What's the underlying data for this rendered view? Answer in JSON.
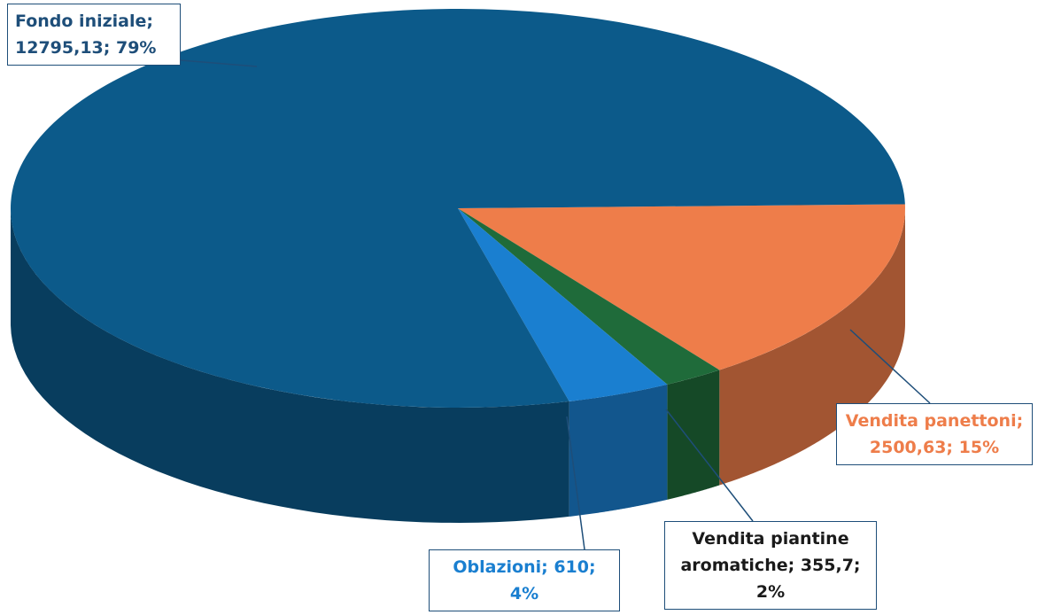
{
  "chart_data": {
    "type": "pie3d",
    "values": [
      12795.13,
      2500.63,
      355.7,
      610
    ],
    "value_labels": [
      "Fondo iniziale; 12795,13; 79%",
      "Vendita panettoni; 2500,63; 15%",
      "Vendita piantine aromatiche; 355,7; 2%",
      "Oblazioni; 610; 4%"
    ],
    "colors": [
      "#0c5a8a",
      "#ee7d4a",
      "#1f6b3a",
      "#1a7fd0"
    ],
    "label_colors": [
      "#1e4e79",
      "#ee7d4a",
      "#1a1a1a",
      "#1a7fd0"
    ]
  }
}
